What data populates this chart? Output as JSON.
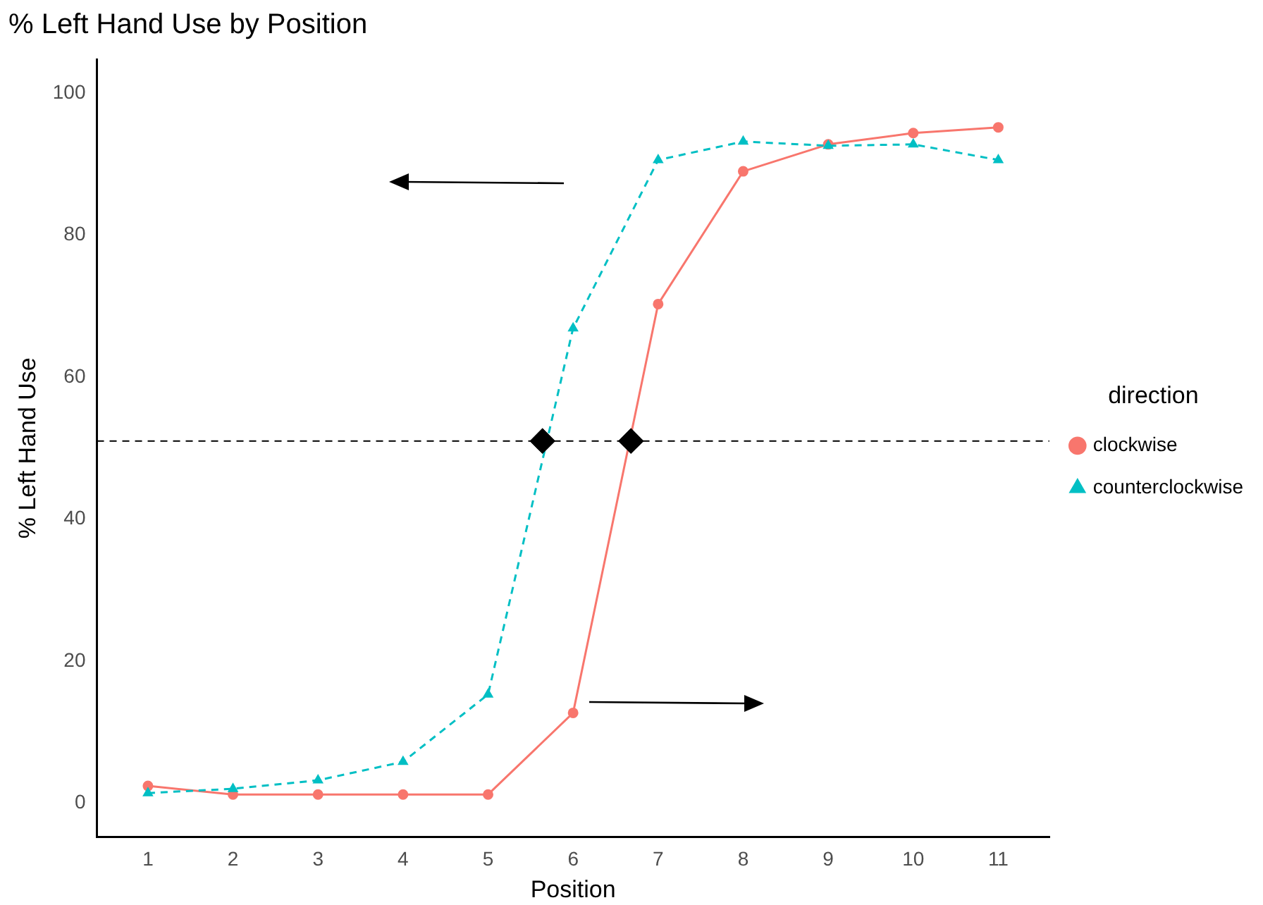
{
  "chart_data": {
    "type": "line",
    "title": "% Left Hand Use by Position",
    "xlabel": "Position",
    "ylabel": "% Left Hand Use",
    "legend_title": "direction",
    "x": [
      1,
      2,
      3,
      4,
      5,
      6,
      7,
      8,
      9,
      10,
      11
    ],
    "series": [
      {
        "name": "clockwise",
        "color": "#f8766d",
        "marker": "circle",
        "line_style": "solid",
        "values": [
          2.4,
          1.2,
          1.2,
          1.2,
          1.2,
          12.7,
          70.3,
          89.0,
          92.8,
          94.4,
          95.2
        ]
      },
      {
        "name": "counterclockwise",
        "color": "#00bfc4",
        "marker": "triangle",
        "line_style": "dashed",
        "values": [
          1.4,
          2.0,
          3.2,
          5.8,
          15.3,
          66.9,
          90.6,
          93.2,
          92.6,
          92.8,
          90.6
        ]
      },
      {
        "type": "scatter",
        "color": "#000000",
        "marker": "diamond",
        "x": [
          5.64,
          6.68
        ],
        "values": [
          51,
          51
        ]
      }
    ],
    "xlim": [
      0.4,
      11.6
    ],
    "xticks": [
      1,
      2,
      3,
      4,
      5,
      6,
      7,
      8,
      9,
      10,
      11
    ],
    "ylim": [
      -4.8,
      104.8
    ],
    "yticks": [
      0,
      20,
      40,
      60,
      80,
      100
    ],
    "ref_lines": [
      {
        "axis": "y",
        "value": 51,
        "color": "#000000",
        "line_style": "dashed"
      }
    ],
    "grid": false,
    "legend": "right"
  }
}
